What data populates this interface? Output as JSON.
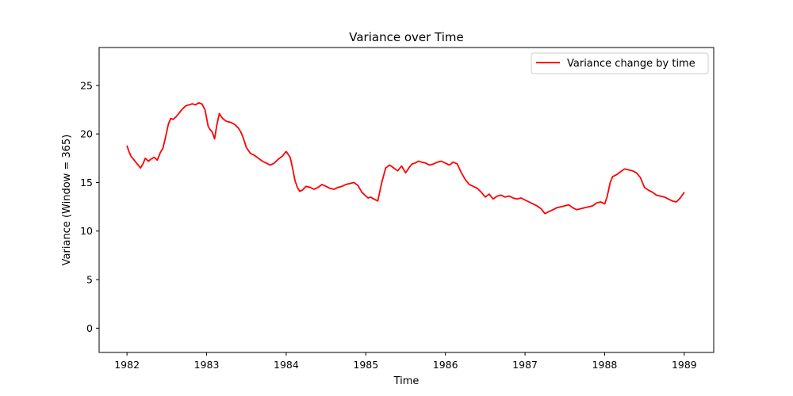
{
  "chart_data": {
    "type": "line",
    "title": "Variance over Time",
    "xlabel": "Time",
    "ylabel": "Variance (Window = 365)",
    "xlim": [
      1981.65,
      1989.37
    ],
    "ylim": [
      -2.5,
      28.9
    ],
    "xticks": [
      1982,
      1983,
      1984,
      1985,
      1986,
      1987,
      1988,
      1989
    ],
    "yticks": [
      0,
      5,
      10,
      15,
      20,
      25
    ],
    "grid": false,
    "legend": "top-right",
    "series": [
      {
        "name": "Variance change by time",
        "color": "#ff0000",
        "x": [
          1982.0,
          1982.02,
          1982.05,
          1982.08,
          1982.11,
          1982.14,
          1982.17,
          1982.2,
          1982.23,
          1982.27,
          1982.3,
          1982.34,
          1982.38,
          1982.42,
          1982.45,
          1982.48,
          1982.52,
          1982.55,
          1982.58,
          1982.62,
          1982.66,
          1982.7,
          1982.74,
          1982.78,
          1982.82,
          1982.86,
          1982.9,
          1982.94,
          1982.98,
          1983.02,
          1983.04,
          1983.07,
          1983.1,
          1983.13,
          1983.16,
          1983.2,
          1983.25,
          1983.3,
          1983.35,
          1983.4,
          1983.43,
          1983.46,
          1983.5,
          1983.55,
          1983.6,
          1983.65,
          1983.7,
          1983.75,
          1983.8,
          1983.85,
          1983.9,
          1983.95,
          1984.0,
          1984.05,
          1984.08,
          1984.11,
          1984.14,
          1984.17,
          1984.2,
          1984.25,
          1984.3,
          1984.35,
          1984.4,
          1984.45,
          1984.5,
          1984.55,
          1984.6,
          1984.65,
          1984.7,
          1984.75,
          1984.8,
          1984.85,
          1984.9,
          1984.95,
          1985.0,
          1985.03,
          1985.06,
          1985.1,
          1985.15,
          1985.2,
          1985.25,
          1985.3,
          1985.35,
          1985.4,
          1985.45,
          1985.5,
          1985.55,
          1985.58,
          1985.62,
          1985.66,
          1985.7,
          1985.75,
          1985.8,
          1985.85,
          1985.9,
          1985.95,
          1986.0,
          1986.05,
          1986.1,
          1986.15,
          1986.2,
          1986.25,
          1986.3,
          1986.35,
          1986.4,
          1986.45,
          1986.5,
          1986.55,
          1986.6,
          1986.65,
          1986.7,
          1986.75,
          1986.8,
          1986.85,
          1986.9,
          1986.95,
          1987.0,
          1987.05,
          1987.1,
          1987.15,
          1987.2,
          1987.25,
          1987.3,
          1987.35,
          1987.4,
          1987.45,
          1987.5,
          1987.55,
          1987.6,
          1987.65,
          1987.7,
          1987.75,
          1987.8,
          1987.85,
          1987.9,
          1987.95,
          1988.0,
          1988.03,
          1988.07,
          1988.1,
          1988.15,
          1988.2,
          1988.25,
          1988.3,
          1988.35,
          1988.4,
          1988.45,
          1988.5,
          1988.55,
          1988.6,
          1988.65,
          1988.7,
          1988.75,
          1988.8,
          1988.85,
          1988.9,
          1988.95,
          1989.0
        ],
        "values": [
          18.8,
          18.3,
          17.7,
          17.4,
          17.1,
          16.8,
          16.5,
          16.9,
          17.5,
          17.2,
          17.4,
          17.6,
          17.3,
          18.1,
          18.5,
          19.5,
          21.0,
          21.6,
          21.5,
          21.8,
          22.2,
          22.6,
          22.9,
          23.0,
          23.1,
          23.0,
          23.2,
          23.1,
          22.5,
          20.8,
          20.5,
          20.2,
          19.5,
          21.0,
          22.1,
          21.6,
          21.3,
          21.2,
          21.0,
          20.6,
          20.2,
          19.6,
          18.6,
          18.0,
          17.8,
          17.5,
          17.2,
          17.0,
          16.8,
          17.0,
          17.4,
          17.7,
          18.2,
          17.6,
          16.5,
          15.2,
          14.5,
          14.1,
          14.2,
          14.6,
          14.5,
          14.3,
          14.5,
          14.8,
          14.6,
          14.4,
          14.3,
          14.5,
          14.6,
          14.8,
          14.9,
          15.0,
          14.7,
          14.0,
          13.6,
          13.4,
          13.5,
          13.3,
          13.1,
          15.0,
          16.5,
          16.8,
          16.5,
          16.2,
          16.7,
          16.0,
          16.6,
          16.9,
          17.0,
          17.2,
          17.1,
          17.0,
          16.8,
          16.9,
          17.1,
          17.2,
          17.0,
          16.8,
          17.1,
          16.9,
          16.0,
          15.3,
          14.8,
          14.6,
          14.4,
          14.0,
          13.5,
          13.8,
          13.3,
          13.6,
          13.7,
          13.5,
          13.6,
          13.4,
          13.3,
          13.4,
          13.2,
          13.0,
          12.8,
          12.6,
          12.3,
          11.8,
          12.0,
          12.2,
          12.4,
          12.5,
          12.6,
          12.7,
          12.4,
          12.2,
          12.3,
          12.4,
          12.5,
          12.6,
          12.9,
          13.0,
          12.8,
          13.5,
          15.0,
          15.6,
          15.8,
          16.1,
          16.4,
          16.3,
          16.2,
          16.0,
          15.5,
          14.5,
          14.2,
          14.0,
          13.7,
          13.6,
          13.5,
          13.3,
          13.1,
          13.0,
          13.4,
          14.0
        ]
      }
    ]
  }
}
